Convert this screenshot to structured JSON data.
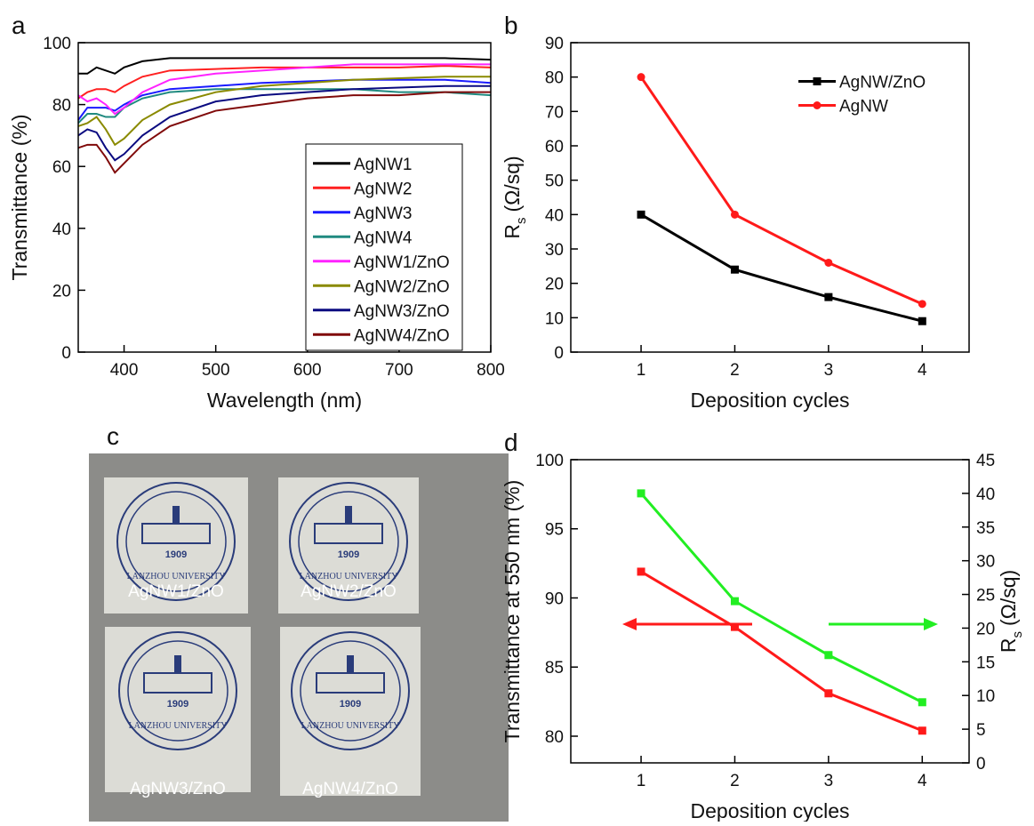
{
  "chart_data": [
    {
      "type": "line",
      "panel_label": "a",
      "xlabel": "Wavelength (nm)",
      "ylabel": "Transmittance (%)",
      "x": [
        350,
        360,
        370,
        380,
        390,
        400,
        420,
        450,
        500,
        550,
        600,
        650,
        700,
        750,
        800
      ],
      "xlim": [
        350,
        800
      ],
      "xticks": [
        400,
        500,
        600,
        700,
        800
      ],
      "ylim": [
        0,
        100
      ],
      "yticks": [
        0,
        20,
        40,
        60,
        80,
        100
      ],
      "legend": "lower right",
      "series": [
        {
          "name": "AgNW1",
          "color": "#000000",
          "values": [
            90,
            90,
            92,
            91,
            90,
            92,
            94,
            95,
            95,
            95,
            95,
            95,
            95,
            95,
            94.5
          ]
        },
        {
          "name": "AgNW2",
          "color": "#ff2020",
          "values": [
            82,
            84,
            85,
            85,
            84,
            86,
            89,
            91,
            91.5,
            92,
            92,
            92,
            92,
            92.5,
            92
          ]
        },
        {
          "name": "AgNW3",
          "color": "#1a1aff",
          "values": [
            75,
            79,
            79,
            79,
            78,
            80,
            83,
            85,
            86,
            87,
            87.5,
            88,
            88,
            88,
            87
          ]
        },
        {
          "name": "AgNW4",
          "color": "#208a80",
          "values": [
            74,
            77,
            77,
            76,
            76,
            79,
            82,
            84,
            85,
            85,
            85,
            85,
            84,
            84,
            83
          ]
        },
        {
          "name": "AgNW1/ZnO",
          "color": "#ff22ff",
          "values": [
            83,
            81,
            82,
            80,
            77,
            79,
            84,
            88,
            90,
            91,
            92,
            93,
            93,
            93,
            93
          ]
        },
        {
          "name": "AgNW2/ZnO",
          "color": "#8a8a00",
          "values": [
            73,
            74,
            76,
            72,
            67,
            69,
            75,
            80,
            84,
            86,
            87,
            88,
            88.5,
            89,
            89
          ]
        },
        {
          "name": "AgNW3/ZnO",
          "color": "#0a0a80",
          "values": [
            70,
            72,
            71,
            66,
            62,
            64,
            70,
            76,
            81,
            83,
            84,
            85,
            85.5,
            86,
            86
          ]
        },
        {
          "name": "AgNW4/ZnO",
          "color": "#800a0a",
          "values": [
            66,
            67,
            67,
            63,
            58,
            61,
            67,
            73,
            78,
            80,
            82,
            83,
            83,
            84,
            84
          ]
        }
      ]
    },
    {
      "type": "line",
      "panel_label": "b",
      "xlabel": "Deposition cycles",
      "ylabel": "R",
      "ylabel_sub": "s",
      "ylabel_unit": "(Ω/sq)",
      "x": [
        1,
        2,
        3,
        4
      ],
      "xlim": [
        0.25,
        4.5
      ],
      "xticks": [
        1,
        2,
        3,
        4
      ],
      "ylim": [
        0,
        90
      ],
      "yticks": [
        0,
        10,
        20,
        30,
        40,
        50,
        60,
        70,
        80,
        90
      ],
      "legend": "upper right",
      "series": [
        {
          "name": "AgNW/ZnO",
          "color": "#000000",
          "marker": "square",
          "values": [
            40,
            24,
            16,
            9
          ]
        },
        {
          "name": "AgNW",
          "color": "#ff1a1a",
          "marker": "circle",
          "values": [
            80,
            40,
            26,
            14
          ]
        }
      ]
    },
    {
      "type": "line",
      "panel_label": "d",
      "xlabel": "Deposition cycles",
      "ylabel": "Transmittance at 550 nm (%)",
      "y2label": "R",
      "y2label_sub": "s",
      "y2label_unit": "(Ω/sq)",
      "x": [
        1,
        2,
        3,
        4
      ],
      "xlim": [
        0.25,
        4.5
      ],
      "xticks": [
        1,
        2,
        3,
        4
      ],
      "ylim": [
        78.07,
        100
      ],
      "yticks": [
        80,
        85,
        90,
        95,
        100
      ],
      "y2lim": [
        0,
        45
      ],
      "y2ticks": [
        0,
        5,
        10,
        15,
        20,
        25,
        30,
        35,
        40,
        45
      ],
      "series": [
        {
          "color": "#ff1a1a",
          "marker": "square",
          "values": [
            91.9,
            87.9,
            83.1,
            80.4
          ]
        },
        {
          "color": "#22ee22",
          "marker": "square",
          "axis": "y2",
          "values": [
            40,
            24,
            16,
            9
          ]
        }
      ]
    }
  ],
  "photo": {
    "label": "c",
    "captions": [
      "AgNW1/ZnO",
      "AgNW2/ZnO",
      "AgNW3/ZnO",
      "AgNW4/ZnO"
    ],
    "logo_year": "1909",
    "logo_text": "LANZHOU UNIVERSITY"
  }
}
